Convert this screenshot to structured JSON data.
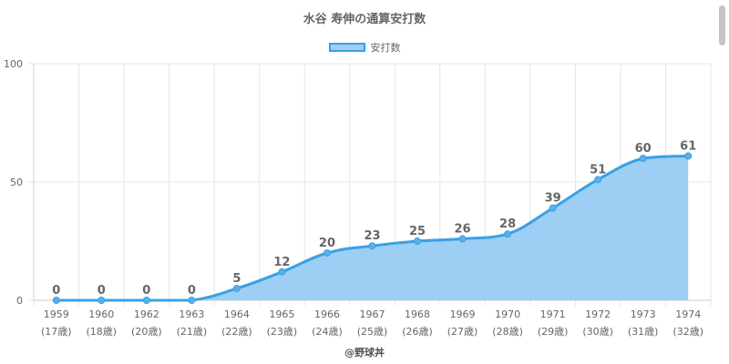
{
  "title": "水谷 寿伸の通算安打数",
  "credit": "@野球丼",
  "colors": {
    "line": "#3aa0e6",
    "fill": "#9ccff3",
    "grid": "#e6e6e6",
    "text": "#666666"
  },
  "chart_data": {
    "type": "area",
    "title": "水谷 寿伸の通算安打数",
    "xlabel": "",
    "ylabel": "",
    "ylim": [
      0,
      100
    ],
    "yticks": [
      "0",
      "50",
      "100"
    ],
    "grid": true,
    "legend_position": "top-center",
    "categories": [
      "1959",
      "1960",
      "1962",
      "1963",
      "1964",
      "1965",
      "1966",
      "1967",
      "1968",
      "1969",
      "1970",
      "1971",
      "1972",
      "1973",
      "1974"
    ],
    "sublabels": [
      "(17歳)",
      "(18歳)",
      "(20歳)",
      "(21歳)",
      "(22歳)",
      "(23歳)",
      "(24歳)",
      "(25歳)",
      "(26歳)",
      "(27歳)",
      "(28歳)",
      "(29歳)",
      "(30歳)",
      "(31歳)",
      "(32歳)"
    ],
    "series": [
      {
        "name": "安打数",
        "values": [
          0,
          0,
          0,
          0,
          5,
          12,
          20,
          23,
          25,
          26,
          28,
          39,
          51,
          60,
          61
        ]
      }
    ]
  }
}
